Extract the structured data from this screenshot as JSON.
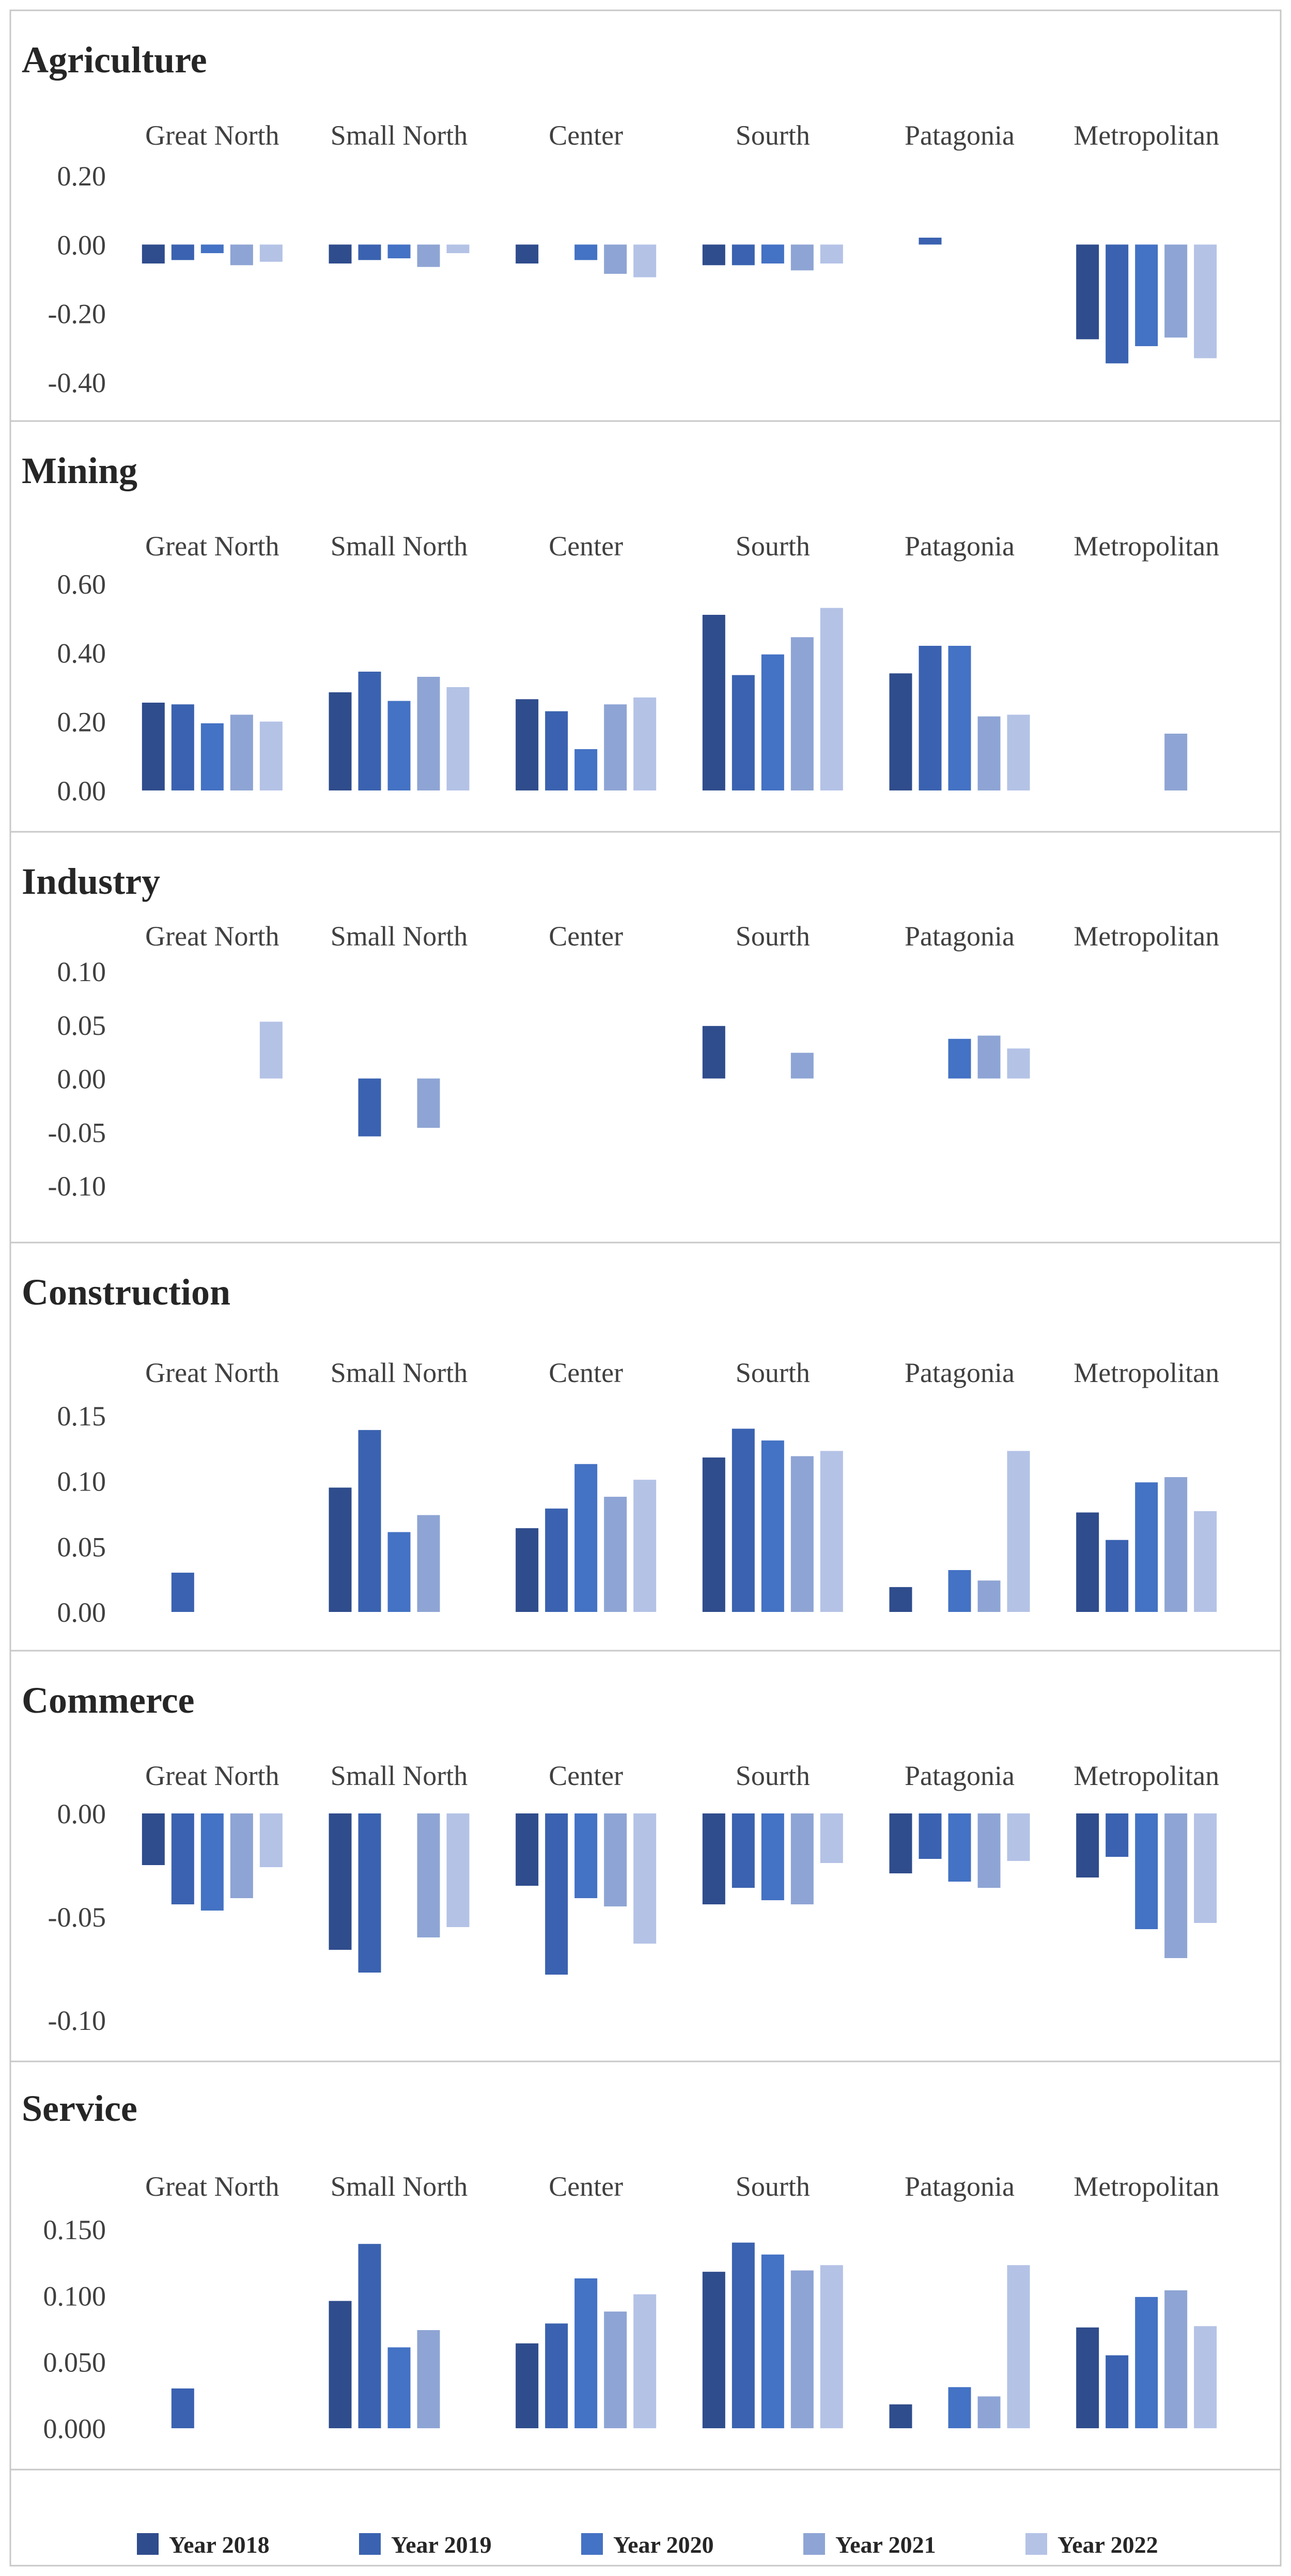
{
  "colors": {
    "2018": "#2F4C8C",
    "2019": "#3A62B0",
    "2020": "#4472C4",
    "2021": "#8EA4D4",
    "2022": "#B4C2E6"
  },
  "legend": [
    "Year 2018",
    "Year 2019",
    "Year 2020",
    "Year 2021",
    "Year 2022"
  ],
  "chart_data": [
    {
      "type": "bar",
      "title": "Agriculture",
      "categories": [
        "Great North",
        "Small North",
        "Center",
        "Sourth",
        "Patagonia",
        "Metropolitan"
      ],
      "ylim": [
        -0.4,
        0.2
      ],
      "ticks": [
        0.2,
        0.0,
        -0.2,
        -0.4
      ],
      "tick_labels": [
        "0.20",
        "0.00",
        "-0.20",
        "-0.40"
      ],
      "series": [
        {
          "name": "Year 2018",
          "values": [
            -0.055,
            -0.055,
            -0.055,
            -0.06,
            0,
            -0.275
          ]
        },
        {
          "name": "Year 2019",
          "values": [
            -0.045,
            -0.045,
            0,
            -0.06,
            0.02,
            -0.345
          ]
        },
        {
          "name": "Year 2020",
          "values": [
            -0.025,
            -0.04,
            -0.045,
            -0.055,
            0,
            -0.295
          ]
        },
        {
          "name": "Year 2021",
          "values": [
            -0.06,
            -0.065,
            -0.085,
            -0.075,
            0,
            -0.27
          ]
        },
        {
          "name": "Year 2022",
          "values": [
            -0.05,
            -0.025,
            -0.095,
            -0.055,
            0,
            -0.33
          ]
        }
      ]
    },
    {
      "type": "bar",
      "title": "Mining",
      "categories": [
        "Great North",
        "Small North",
        "Center",
        "Sourth",
        "Patagonia",
        "Metropolitan"
      ],
      "ylim": [
        0,
        0.6
      ],
      "ticks": [
        0.6,
        0.4,
        0.2,
        0.0
      ],
      "tick_labels": [
        "0.60",
        "0.40",
        "0.20",
        "0.00"
      ],
      "series": [
        {
          "name": "Year 2018",
          "values": [
            0.255,
            0.285,
            0.265,
            0.51,
            0.34,
            0
          ]
        },
        {
          "name": "Year 2019",
          "values": [
            0.25,
            0.345,
            0.23,
            0.335,
            0.42,
            0
          ]
        },
        {
          "name": "Year 2020",
          "values": [
            0.195,
            0.26,
            0.12,
            0.395,
            0.42,
            0
          ]
        },
        {
          "name": "Year 2021",
          "values": [
            0.22,
            0.33,
            0.25,
            0.445,
            0.215,
            0.165
          ]
        },
        {
          "name": "Year 2022",
          "values": [
            0.2,
            0.3,
            0.27,
            0.53,
            0.22,
            0
          ]
        }
      ]
    },
    {
      "type": "bar",
      "title": "Industry",
      "categories": [
        "Great North",
        "Small North",
        "Center",
        "Sourth",
        "Patagonia",
        "Metropolitan"
      ],
      "ylim": [
        -0.1,
        0.1
      ],
      "ticks": [
        0.1,
        0.05,
        0.0,
        -0.05,
        -0.1
      ],
      "tick_labels": [
        "0.10",
        "0.05",
        "0.00",
        "-0.05",
        "-0.10"
      ],
      "series": [
        {
          "name": "Year 2018",
          "values": [
            0,
            0,
            0,
            0.049,
            0,
            0
          ]
        },
        {
          "name": "Year 2019",
          "values": [
            0,
            -0.054,
            0,
            0,
            0,
            0
          ]
        },
        {
          "name": "Year 2020",
          "values": [
            0,
            0,
            0,
            0,
            0.037,
            0
          ]
        },
        {
          "name": "Year 2021",
          "values": [
            0,
            -0.046,
            0,
            0.024,
            0.04,
            0
          ]
        },
        {
          "name": "Year 2022",
          "values": [
            0.053,
            0,
            0,
            0,
            0.028,
            0
          ]
        }
      ]
    },
    {
      "type": "bar",
      "title": "Construction",
      "categories": [
        "Great North",
        "Small North",
        "Center",
        "Sourth",
        "Patagonia",
        "Metropolitan"
      ],
      "ylim": [
        0,
        0.15
      ],
      "ticks": [
        0.15,
        0.1,
        0.05,
        0.0
      ],
      "tick_labels": [
        "0.15",
        "0.10",
        "0.05",
        "0.00"
      ],
      "series": [
        {
          "name": "Year 2018",
          "values": [
            0,
            0.095,
            0.064,
            0.118,
            0.019,
            0.076
          ]
        },
        {
          "name": "Year 2019",
          "values": [
            0.03,
            0.139,
            0.079,
            0.14,
            0,
            0.055
          ]
        },
        {
          "name": "Year 2020",
          "values": [
            0,
            0.061,
            0.113,
            0.131,
            0.032,
            0.099
          ]
        },
        {
          "name": "Year 2021",
          "values": [
            0,
            0.074,
            0.088,
            0.119,
            0.024,
            0.103
          ]
        },
        {
          "name": "Year 2022",
          "values": [
            0,
            0,
            0.101,
            0.123,
            0.123,
            0.077
          ]
        }
      ]
    },
    {
      "type": "bar",
      "title": "Commerce",
      "categories": [
        "Great North",
        "Small North",
        "Center",
        "Sourth",
        "Patagonia",
        "Metropolitan"
      ],
      "ylim": [
        -0.1,
        0.0
      ],
      "ticks": [
        0.0,
        -0.05,
        -0.1
      ],
      "tick_labels": [
        "0.00",
        "-0.05",
        "-0.10"
      ],
      "series": [
        {
          "name": "Year 2018",
          "values": [
            -0.025,
            -0.066,
            -0.035,
            -0.044,
            -0.029,
            -0.031
          ]
        },
        {
          "name": "Year 2019",
          "values": [
            -0.044,
            -0.077,
            -0.078,
            -0.036,
            -0.022,
            -0.021
          ]
        },
        {
          "name": "Year 2020",
          "values": [
            -0.047,
            0,
            -0.041,
            -0.042,
            -0.033,
            -0.056
          ]
        },
        {
          "name": "Year 2021",
          "values": [
            -0.041,
            -0.06,
            -0.045,
            -0.044,
            -0.036,
            -0.07
          ]
        },
        {
          "name": "Year 2022",
          "values": [
            -0.026,
            -0.055,
            -0.063,
            -0.024,
            -0.023,
            -0.053
          ]
        }
      ]
    },
    {
      "type": "bar",
      "title": "Service",
      "categories": [
        "Great North",
        "Small North",
        "Center",
        "Sourth",
        "Patagonia",
        "Metropolitan"
      ],
      "ylim": [
        0,
        0.15
      ],
      "ticks": [
        0.15,
        0.1,
        0.05,
        0.0
      ],
      "tick_labels": [
        "0.150",
        "0.100",
        "0.050",
        "0.000"
      ],
      "series": [
        {
          "name": "Year 2018",
          "values": [
            0,
            0.096,
            0.064,
            0.118,
            0.018,
            0.076
          ]
        },
        {
          "name": "Year 2019",
          "values": [
            0.03,
            0.139,
            0.079,
            0.14,
            0,
            0.055
          ]
        },
        {
          "name": "Year 2020",
          "values": [
            0,
            0.061,
            0.113,
            0.131,
            0.031,
            0.099
          ]
        },
        {
          "name": "Year 2021",
          "values": [
            0,
            0.074,
            0.088,
            0.119,
            0.024,
            0.104
          ]
        },
        {
          "name": "Year 2022",
          "values": [
            0,
            0,
            0.101,
            0.123,
            0.123,
            0.077
          ]
        }
      ]
    }
  ]
}
